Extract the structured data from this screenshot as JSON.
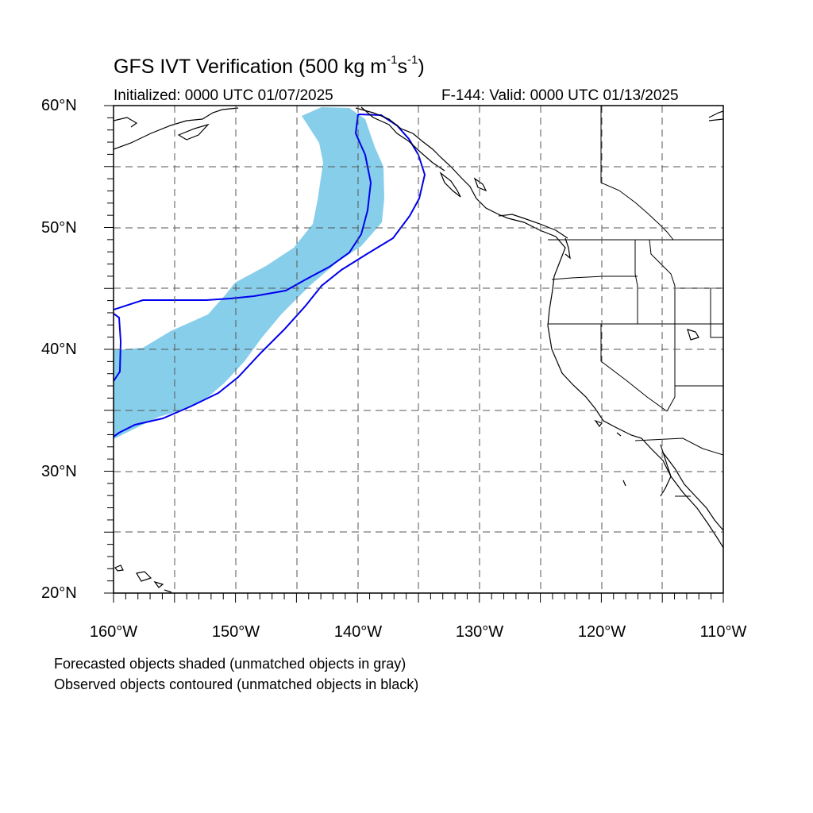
{
  "title_main": "GFS IVT Verification (500 kg m",
  "title_exp1": "-1",
  "title_mid": "s",
  "title_exp2": "-1",
  "title_end": ")",
  "init_text": "Initialized: 0000 UTC 01/07/2025",
  "valid_text": "F-144: Valid: 0000 UTC 01/13/2025",
  "lat_labels": [
    "60°N",
    "50°N",
    "40°N",
    "30°N",
    "20°N"
  ],
  "lon_labels": [
    "160°W",
    "150°W",
    "140°W",
    "130°W",
    "120°W",
    "110°W"
  ],
  "footer_1": "Forecasted objects shaded (unmatched objects in gray)",
  "footer_2": "Observed objects contoured (unmatched objects in black)",
  "colors": {
    "forecast_fill": "#87CEEB",
    "observed_contour": "#0000EE",
    "coastline": "#000000",
    "grid": "#555555"
  },
  "map": {
    "lon_range": [
      -160,
      -110
    ],
    "lat_range": [
      20,
      60
    ],
    "grid_lons": [
      -155,
      -150,
      -145,
      -140,
      -135,
      -130,
      -125,
      -120,
      -115
    ],
    "grid_lats": [
      25,
      30,
      35,
      40,
      45,
      50,
      55
    ]
  }
}
